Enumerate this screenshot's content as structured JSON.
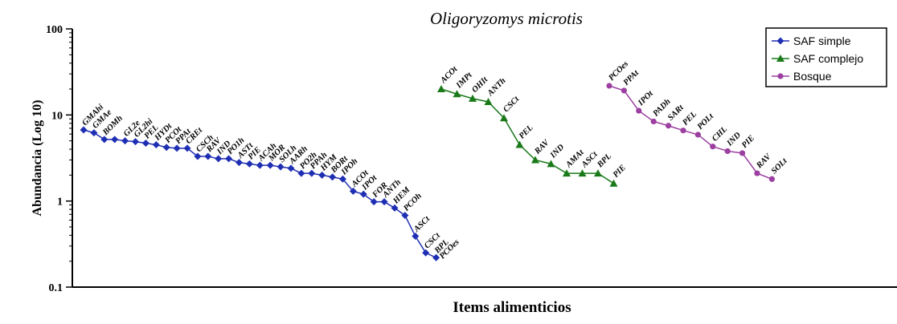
{
  "chart_data": {
    "type": "line",
    "title": "Oligoryzomys microtis",
    "xlabel": "Items alimenticios",
    "ylabel": "Abundancia (Log 10)",
    "yscale": "log",
    "ylim": [
      0.1,
      100
    ],
    "yticks": [
      "0.1",
      "1",
      "10",
      "100"
    ],
    "grid": false,
    "legend_position": "top-right",
    "series": [
      {
        "name": "SAF simple",
        "color": "#1f2fb3",
        "marker": "diamond",
        "points": [
          {
            "label": "GMAhi",
            "value": 6.7
          },
          {
            "label": "GMAe",
            "value": 6.2
          },
          {
            "label": "BOMh",
            "value": 5.2
          },
          {
            "label": "",
            "value": 5.2
          },
          {
            "label": "GL2e",
            "value": 5.0
          },
          {
            "label": "GL2hi",
            "value": 4.9
          },
          {
            "label": "PEL",
            "value": 4.7
          },
          {
            "label": "HYDt",
            "value": 4.5
          },
          {
            "label": "PCOt",
            "value": 4.2
          },
          {
            "label": "PPAt",
            "value": 4.1
          },
          {
            "label": "CREt",
            "value": 4.1
          },
          {
            "label": "CSCh",
            "value": 3.3
          },
          {
            "label": "RAV",
            "value": 3.3
          },
          {
            "label": "IND",
            "value": 3.1
          },
          {
            "label": "PO1h",
            "value": 3.1
          },
          {
            "label": "ASTt",
            "value": 2.8
          },
          {
            "label": "PIE",
            "value": 2.7
          },
          {
            "label": "ACAh",
            "value": 2.6
          },
          {
            "label": "MOR",
            "value": 2.6
          },
          {
            "label": "SOLh",
            "value": 2.5
          },
          {
            "label": "AARh",
            "value": 2.4
          },
          {
            "label": "PO2h",
            "value": 2.1
          },
          {
            "label": "PPAh",
            "value": 2.1
          },
          {
            "label": "HYM",
            "value": 2.0
          },
          {
            "label": "BORt",
            "value": 1.9
          },
          {
            "label": "IPOh",
            "value": 1.8
          },
          {
            "label": "ACOt",
            "value": 1.3
          },
          {
            "label": "IPOt",
            "value": 1.2
          },
          {
            "label": "FOR",
            "value": 0.98
          },
          {
            "label": "ANTh",
            "value": 0.98
          },
          {
            "label": "HEM",
            "value": 0.83
          },
          {
            "label": "PCOh",
            "value": 0.68
          },
          {
            "label": "ASCt",
            "value": 0.39
          },
          {
            "label": "CSCt",
            "value": 0.25
          },
          {
            "label": "BPL",
            "value": 0.22
          },
          {
            "label": "PCOes",
            "value": null
          }
        ]
      },
      {
        "name": "SAF complejo",
        "color": "#1a7a1a",
        "marker": "triangle",
        "points": [
          {
            "label": "ACOt",
            "value": 20
          },
          {
            "label": "IMPt",
            "value": 17.5
          },
          {
            "label": "OHIt",
            "value": 15.5
          },
          {
            "label": "ANTh",
            "value": 14.2
          },
          {
            "label": "CSCt",
            "value": 9.2
          },
          {
            "label": "PEL",
            "value": 4.5
          },
          {
            "label": "RAV",
            "value": 3.0
          },
          {
            "label": "IND",
            "value": 2.7
          },
          {
            "label": "AMAt",
            "value": 2.1
          },
          {
            "label": "ASCt",
            "value": 2.1
          },
          {
            "label": "BPL",
            "value": 2.1
          },
          {
            "label": "PIE",
            "value": 1.6
          }
        ]
      },
      {
        "name": "Bosque",
        "color": "#9b3fa0",
        "marker": "circle",
        "points": [
          {
            "label": "PCOes",
            "value": 21.8
          },
          {
            "label": "PPAt",
            "value": 19.2
          },
          {
            "label": "IPOt",
            "value": 11.2
          },
          {
            "label": "PADh",
            "value": 8.4
          },
          {
            "label": "SARt",
            "value": 7.5
          },
          {
            "label": "PEL",
            "value": 6.6
          },
          {
            "label": "POLt",
            "value": 5.9
          },
          {
            "label": "CHL",
            "value": 4.3
          },
          {
            "label": "IND",
            "value": 3.8
          },
          {
            "label": "PIE",
            "value": 3.6
          },
          {
            "label": "RAV",
            "value": 2.1
          },
          {
            "label": "SOLt",
            "value": 1.8
          }
        ]
      }
    ]
  }
}
